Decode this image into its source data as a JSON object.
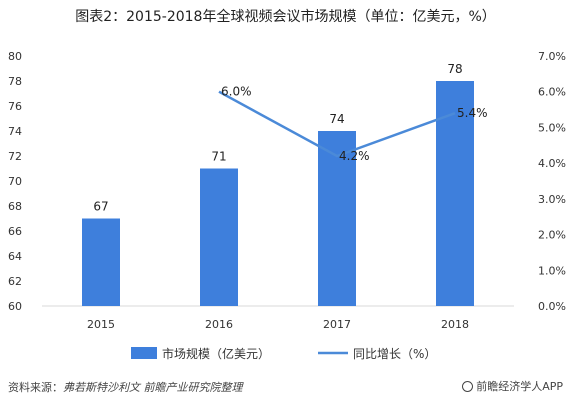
{
  "title": "图表2：2015-2018年全球视频会议市场规模（单位：亿美元，%）",
  "chart_data": {
    "type": "bar",
    "categories": [
      "2015",
      "2016",
      "2017",
      "2018"
    ],
    "series": [
      {
        "name": "市场规模（亿美元）",
        "type": "bar",
        "axis": "left",
        "values": [
          67,
          71,
          74,
          78
        ],
        "color": "#3e7fdc"
      },
      {
        "name": "同比增长（%）",
        "type": "line",
        "axis": "right",
        "values": [
          null,
          6.0,
          4.2,
          5.4
        ],
        "color": "#4b8ad8"
      }
    ],
    "data_labels_bar": [
      "67",
      "71",
      "74",
      "78"
    ],
    "data_labels_line": [
      "",
      "6.0%",
      "4.2%",
      "5.4%"
    ],
    "y_left": {
      "min": 60,
      "max": 80,
      "step": 2,
      "ticks": [
        "60",
        "62",
        "64",
        "66",
        "68",
        "70",
        "72",
        "74",
        "76",
        "78",
        "80"
      ]
    },
    "y_right": {
      "min": 0,
      "max": 7,
      "step": 1,
      "ticks": [
        "0.0%",
        "1.0%",
        "2.0%",
        "3.0%",
        "4.0%",
        "5.0%",
        "6.0%",
        "7.0%"
      ]
    },
    "grid": false,
    "legend_position": "bottom"
  },
  "source": {
    "label": "资料来源：",
    "text": "弗若斯特沙利文 前瞻产业研究院整理"
  },
  "brand": "前瞻经济学人APP"
}
